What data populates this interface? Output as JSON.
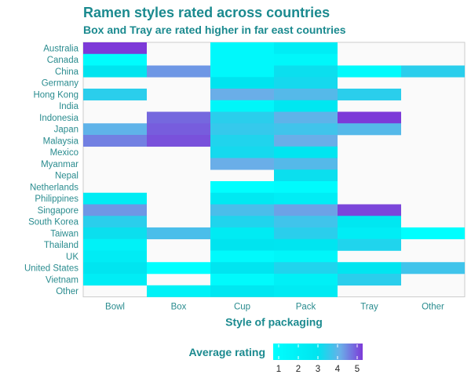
{
  "chart_data": {
    "type": "heatmap",
    "title": "Ramen styles rated across countries",
    "subtitle": "Box and Tray are rated higher in far east countries",
    "xlabel": "Style of packaging",
    "ylabel": "",
    "x": [
      "Bowl",
      "Box",
      "Cup",
      "Pack",
      "Tray",
      "Other"
    ],
    "y": [
      "Australia",
      "Canada",
      "China",
      "Germany",
      "Hong Kong",
      "India",
      "Indonesia",
      "Japan",
      "Malaysia",
      "Mexico",
      "Myanmar",
      "Nepal",
      "Netherlands",
      "Philippines",
      "Singapore",
      "South Korea",
      "Taiwan",
      "Thailand",
      "UK",
      "United States",
      "Vietnam",
      "Other"
    ],
    "values": [
      [
        5.0,
        null,
        1.5,
        2.3,
        null,
        null
      ],
      [
        1.2,
        null,
        1.5,
        1.6,
        null,
        null
      ],
      [
        3.0,
        4.2,
        1.5,
        3.1,
        1.4,
        3.4
      ],
      [
        null,
        null,
        3.0,
        3.2,
        null,
        null
      ],
      [
        3.4,
        null,
        4.0,
        3.8,
        3.4,
        null
      ],
      [
        null,
        null,
        1.7,
        2.8,
        null,
        null
      ],
      [
        null,
        4.6,
        3.4,
        3.9,
        5.0,
        null
      ],
      [
        3.9,
        4.7,
        3.5,
        3.6,
        3.8,
        null
      ],
      [
        4.4,
        4.8,
        3.3,
        4.0,
        null,
        null
      ],
      [
        null,
        null,
        3.2,
        2.9,
        null,
        null
      ],
      [
        null,
        null,
        4.0,
        3.8,
        null,
        null
      ],
      [
        null,
        null,
        null,
        3.1,
        null,
        null
      ],
      [
        null,
        null,
        1.1,
        1.3,
        null,
        null
      ],
      [
        2.4,
        null,
        2.6,
        2.3,
        null,
        null
      ],
      [
        4.2,
        null,
        3.7,
        4.1,
        4.9,
        null
      ],
      [
        3.4,
        null,
        3.3,
        3.6,
        2.8,
        null
      ],
      [
        3.1,
        3.7,
        2.5,
        3.4,
        2.3,
        1.1
      ],
      [
        2.0,
        null,
        3.0,
        2.9,
        3.3,
        null
      ],
      [
        2.4,
        null,
        1.4,
        1.7,
        null,
        null
      ],
      [
        2.9,
        1.0,
        2.9,
        3.3,
        2.9,
        3.6
      ],
      [
        2.3,
        null,
        1.4,
        2.1,
        3.4,
        null
      ],
      [
        null,
        2.0,
        2.8,
        2.5,
        null,
        null
      ]
    ],
    "colorscale": {
      "min": 1,
      "max": 5,
      "low": "#00ffff",
      "mid": "#00e8f0",
      "high": "#7d3ad8"
    },
    "legend": {
      "title": "Average rating",
      "ticks": [
        1,
        2,
        3,
        4,
        5
      ],
      "position": "bottom"
    },
    "grid": false
  },
  "colors": {
    "text": "#1b8a8f",
    "panel": "#fafafa",
    "panel_border": "#cccccc"
  }
}
